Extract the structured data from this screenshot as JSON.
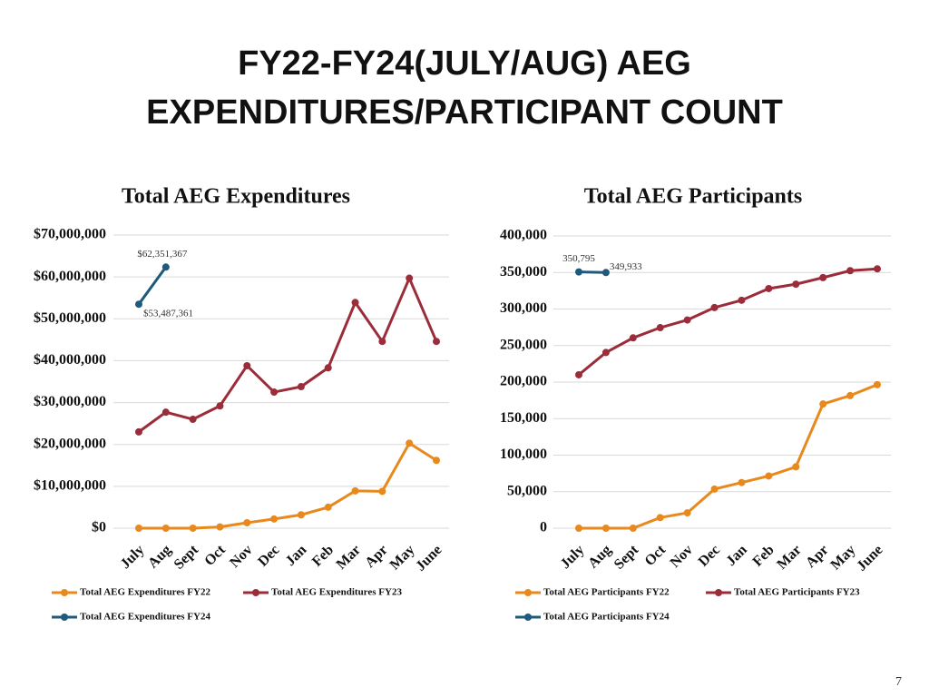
{
  "title_lines": [
    "FY22-FY24(JULY/AUG) AEG",
    "EXPENDITURES/PARTICIPANT COUNT"
  ],
  "page_number": "7",
  "chart_data": [
    {
      "type": "line",
      "title": "Total AEG Expenditures",
      "categories": [
        "July",
        "Aug",
        "Sept",
        "Oct",
        "Nov",
        "Dec",
        "Jan",
        "Feb",
        "Mar",
        "Apr",
        "May",
        "June"
      ],
      "ylim": [
        0,
        70000000
      ],
      "yticks": [
        {
          "value": 0,
          "label": "$0"
        },
        {
          "value": 10000000,
          "label": "$10,000,000"
        },
        {
          "value": 20000000,
          "label": "$20,000,000"
        },
        {
          "value": 30000000,
          "label": "$30,000,000"
        },
        {
          "value": 40000000,
          "label": "$40,000,000"
        },
        {
          "value": 50000000,
          "label": "$50,000,000"
        },
        {
          "value": 60000000,
          "label": "$60,000,000"
        },
        {
          "value": 70000000,
          "label": "$70,000,000"
        }
      ],
      "grid": true,
      "series": [
        {
          "name": "Total AEG Expenditures FY22",
          "color": "#e8891e",
          "values": [
            0,
            0,
            0,
            300000,
            1300000,
            2200000,
            3200000,
            5000000,
            8900000,
            8800000,
            20300000,
            16200000
          ]
        },
        {
          "name": "Total AEG Expenditures FY23",
          "color": "#9b2c3a",
          "values": [
            23000000,
            27700000,
            26000000,
            29200000,
            38800000,
            32500000,
            33800000,
            38300000,
            53900000,
            44600000,
            59700000,
            44600000
          ]
        },
        {
          "name": "Total AEG Expenditures FY24",
          "color": "#1f5a7a",
          "values": [
            53487361,
            62351367,
            null,
            null,
            null,
            null,
            null,
            null,
            null,
            null,
            null,
            null
          ],
          "value_labels": [
            "$53,487,361",
            "$62,351,367",
            null,
            null,
            null,
            null,
            null,
            null,
            null,
            null,
            null,
            null
          ]
        }
      ]
    },
    {
      "type": "line",
      "title": "Total AEG Participants",
      "categories": [
        "July",
        "Aug",
        "Sept",
        "Oct",
        "Nov",
        "Dec",
        "Jan",
        "Feb",
        "Mar",
        "Apr",
        "May",
        "June"
      ],
      "ylim": [
        0,
        400000
      ],
      "yticks": [
        0,
        {
          "value": 50000,
          "label": "50,000"
        },
        {
          "value": 100000,
          "label": "100,000"
        },
        {
          "value": 150000,
          "label": "150,000"
        },
        {
          "value": 200000,
          "label": "200,000"
        },
        {
          "value": 250000,
          "label": "250,000"
        },
        {
          "value": 300000,
          "label": "300,000"
        },
        {
          "value": 350000,
          "label": "350,000"
        },
        {
          "value": 400000,
          "label": "400,000"
        }
      ],
      "grid": true,
      "series": [
        {
          "name": "Total AEG Participants FY22",
          "color": "#e8891e",
          "values": [
            0,
            0,
            0,
            14500,
            21000,
            53500,
            62500,
            71500,
            84000,
            170000,
            181500,
            196500
          ]
        },
        {
          "name": "Total AEG Participants FY23",
          "color": "#9b2c3a",
          "values": [
            210000,
            240500,
            260500,
            274500,
            285000,
            302000,
            312000,
            328000,
            334000,
            343000,
            352500,
            355000
          ]
        },
        {
          "name": "Total AEG Participants FY24",
          "color": "#1f5a7a",
          "values": [
            350795,
            349933,
            null,
            null,
            null,
            null,
            null,
            null,
            null,
            null,
            null,
            null
          ],
          "value_labels": [
            "350,795",
            "349,933",
            null,
            null,
            null,
            null,
            null,
            null,
            null,
            null,
            null,
            null
          ]
        }
      ]
    }
  ]
}
